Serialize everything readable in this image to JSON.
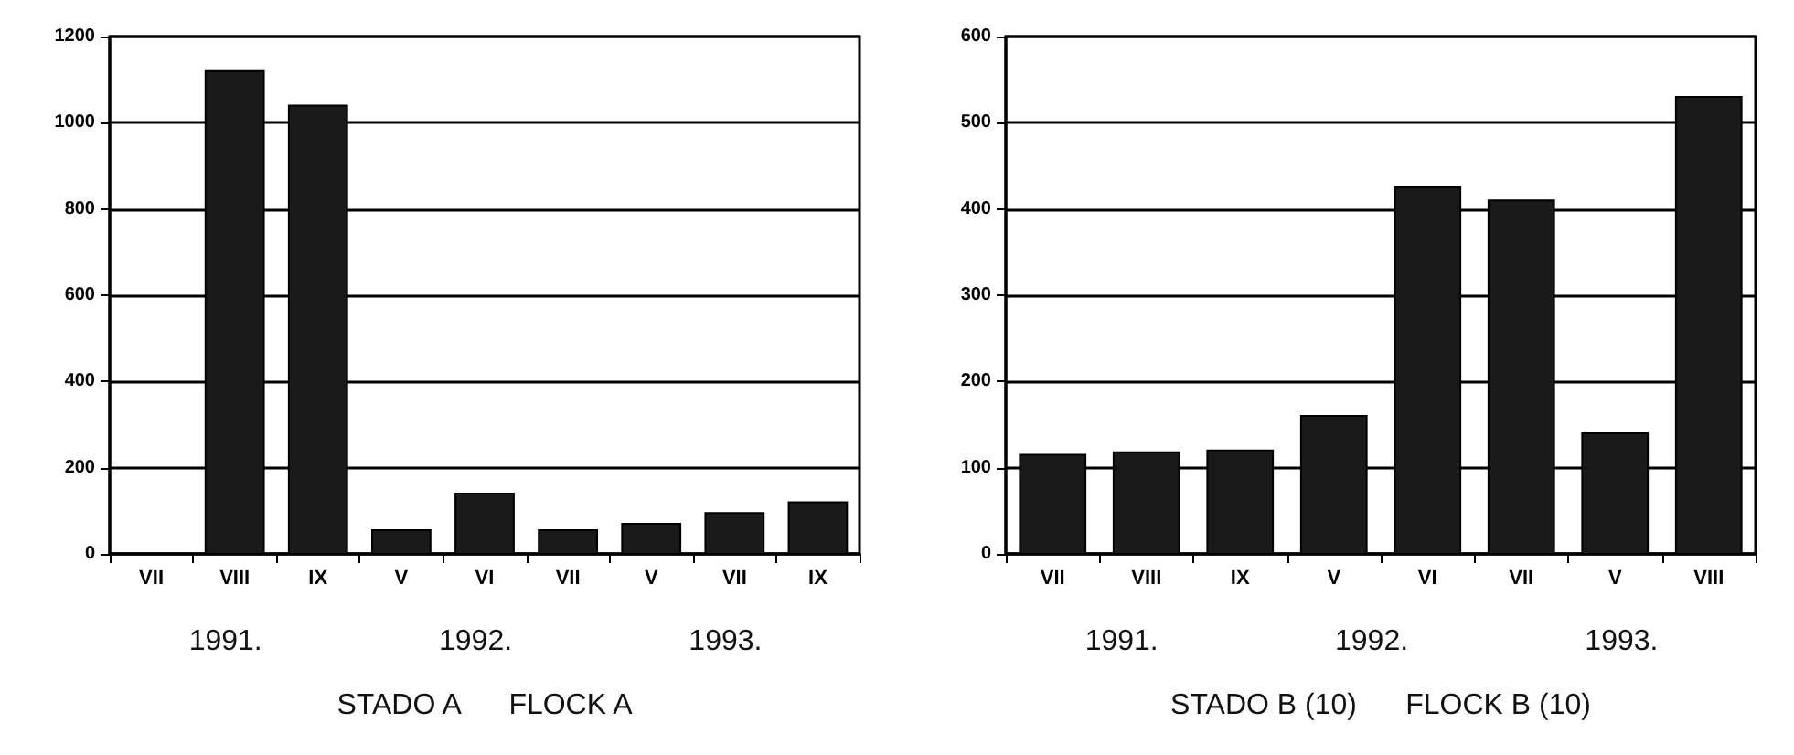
{
  "chart_data": [
    {
      "type": "bar",
      "xlabel": "STADO A      FLOCK A",
      "categories": [
        "VII",
        "VIII",
        "IX",
        "V",
        "VI",
        "VII",
        "V",
        "VII",
        "IX"
      ],
      "values": [
        null,
        1120,
        1040,
        55,
        140,
        55,
        70,
        95,
        120
      ],
      "color": "#1a1a1a",
      "ylim": [
        0,
        1200
      ],
      "yticks": [
        0,
        200,
        400,
        600,
        800,
        1000,
        1200
      ],
      "grid": "y",
      "annotations": [
        "1991.",
        "1992.",
        "1993."
      ]
    },
    {
      "type": "bar",
      "xlabel": "STADO B (10)      FLOCK B (10)",
      "categories": [
        "VII",
        "VIII",
        "IX",
        "V",
        "VI",
        "VII",
        "V",
        "VIII"
      ],
      "values": [
        115,
        118,
        120,
        160,
        425,
        410,
        140,
        530
      ],
      "color": "#1a1a1a",
      "ylim": [
        0,
        600
      ],
      "yticks": [
        0,
        100,
        200,
        300,
        400,
        500,
        600
      ],
      "grid": "y",
      "annotations": [
        "1991.",
        "1992.",
        "1993."
      ]
    }
  ]
}
